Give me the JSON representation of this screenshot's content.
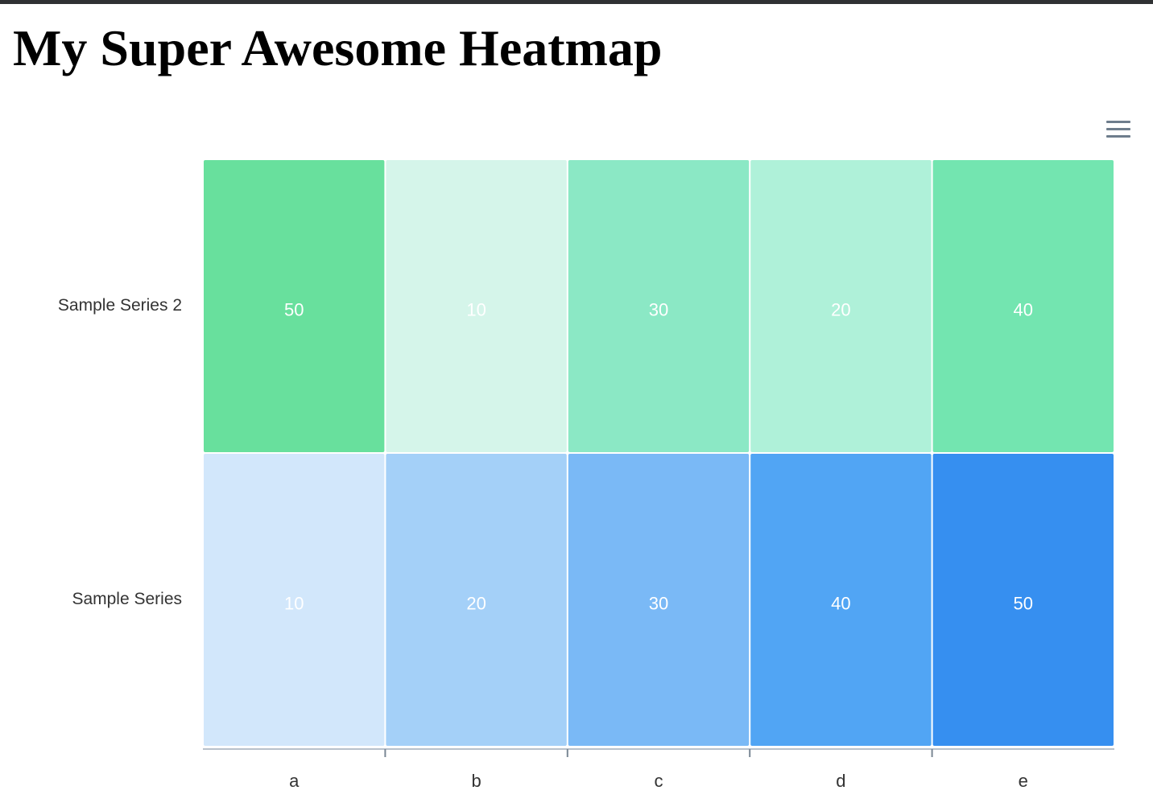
{
  "page": {
    "title": "My Super Awesome Heatmap"
  },
  "menu": {
    "icon": "hamburger-menu-icon"
  },
  "chart_data": {
    "type": "heatmap",
    "title": "My Super Awesome Heatmap",
    "categories": [
      "a",
      "b",
      "c",
      "d",
      "e"
    ],
    "series": [
      {
        "name": "Sample Series 2",
        "values": [
          50,
          10,
          30,
          20,
          40
        ],
        "colors": [
          "#68e09d",
          "#d5f5ea",
          "#8be8c5",
          "#aff1d9",
          "#73e5b0"
        ]
      },
      {
        "name": "Sample Series",
        "values": [
          10,
          20,
          30,
          40,
          50
        ],
        "colors": [
          "#d2e7fb",
          "#a4d0f8",
          "#7ab9f6",
          "#51a5f4",
          "#368ff0"
        ]
      }
    ],
    "data_labels": true,
    "grid": false,
    "legend": "none"
  }
}
